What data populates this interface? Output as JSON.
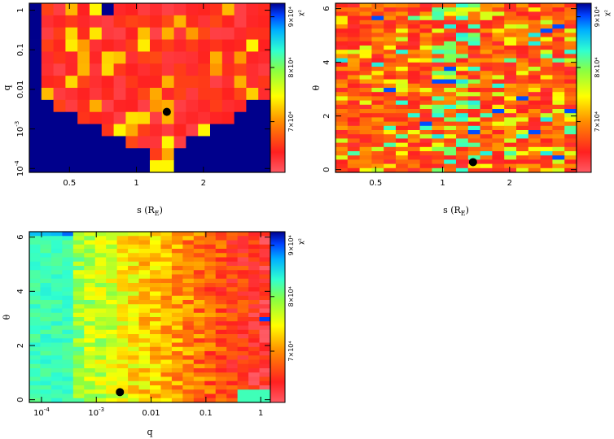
{
  "chart_data": [
    {
      "type": "heatmap",
      "xlabel": "s (R_E)",
      "ylabel": "q",
      "x_scale": "log",
      "y_scale": "log",
      "xlim": [
        0.33,
        4.0
      ],
      "ylim": [
        8e-05,
        1.5
      ],
      "xticks": [
        {
          "v": 0.5,
          "label": "0.5"
        },
        {
          "v": 1,
          "label": "1"
        },
        {
          "v": 2,
          "label": "2"
        }
      ],
      "yticks": [
        {
          "v": 0.0001,
          "base": "10",
          "exp": "-4"
        },
        {
          "v": 0.001,
          "base": "10",
          "exp": "-3"
        },
        {
          "v": 0.01,
          "label": "0.01"
        },
        {
          "v": 0.1,
          "label": "0.1"
        },
        {
          "v": 1,
          "label": "1"
        }
      ],
      "colorbar": {
        "label": "χ²",
        "ticks": [
          "7×10⁴",
          "8×10⁴",
          "9×10⁴"
        ]
      },
      "best_fit": {
        "x": 1.37,
        "y": 0.0027
      }
    },
    {
      "type": "heatmap",
      "xlabel": "s (R_E)",
      "ylabel": "θ",
      "x_scale": "log",
      "y_scale": "linear",
      "xlim": [
        0.33,
        4.0
      ],
      "ylim": [
        -0.1,
        6.2
      ],
      "xticks": [
        {
          "v": 0.5,
          "label": "0.5"
        },
        {
          "v": 1,
          "label": "1"
        },
        {
          "v": 2,
          "label": "2"
        }
      ],
      "yticks": [
        {
          "v": 0,
          "label": "0"
        },
        {
          "v": 2,
          "label": "2"
        },
        {
          "v": 4,
          "label": "4"
        },
        {
          "v": 6,
          "label": "6"
        }
      ],
      "colorbar": {
        "label": "χ²",
        "ticks": [
          "7×10⁴",
          "8×10⁴",
          "9×10⁴"
        ]
      },
      "best_fit": {
        "x": 1.37,
        "y": 0.28
      }
    },
    {
      "type": "heatmap",
      "xlabel": "q",
      "ylabel": "θ",
      "x_scale": "log",
      "y_scale": "linear",
      "xlim": [
        6e-05,
        1.5
      ],
      "ylim": [
        -0.1,
        6.2
      ],
      "xticks": [
        {
          "v": 0.0001,
          "base": "10",
          "exp": "-4"
        },
        {
          "v": 0.001,
          "base": "10",
          "exp": "-3"
        },
        {
          "v": 0.01,
          "label": "0.01"
        },
        {
          "v": 0.1,
          "label": "0.1"
        },
        {
          "v": 1,
          "label": "1"
        }
      ],
      "yticks": [
        {
          "v": 0,
          "label": "0"
        },
        {
          "v": 2,
          "label": "2"
        },
        {
          "v": 4,
          "label": "4"
        },
        {
          "v": 6,
          "label": "6"
        }
      ],
      "colorbar": {
        "label": "χ²",
        "ticks": [
          "7×10⁴",
          "8×10⁴",
          "9×10⁴"
        ]
      },
      "best_fit": {
        "x": 0.0027,
        "y": 0.28
      }
    }
  ]
}
